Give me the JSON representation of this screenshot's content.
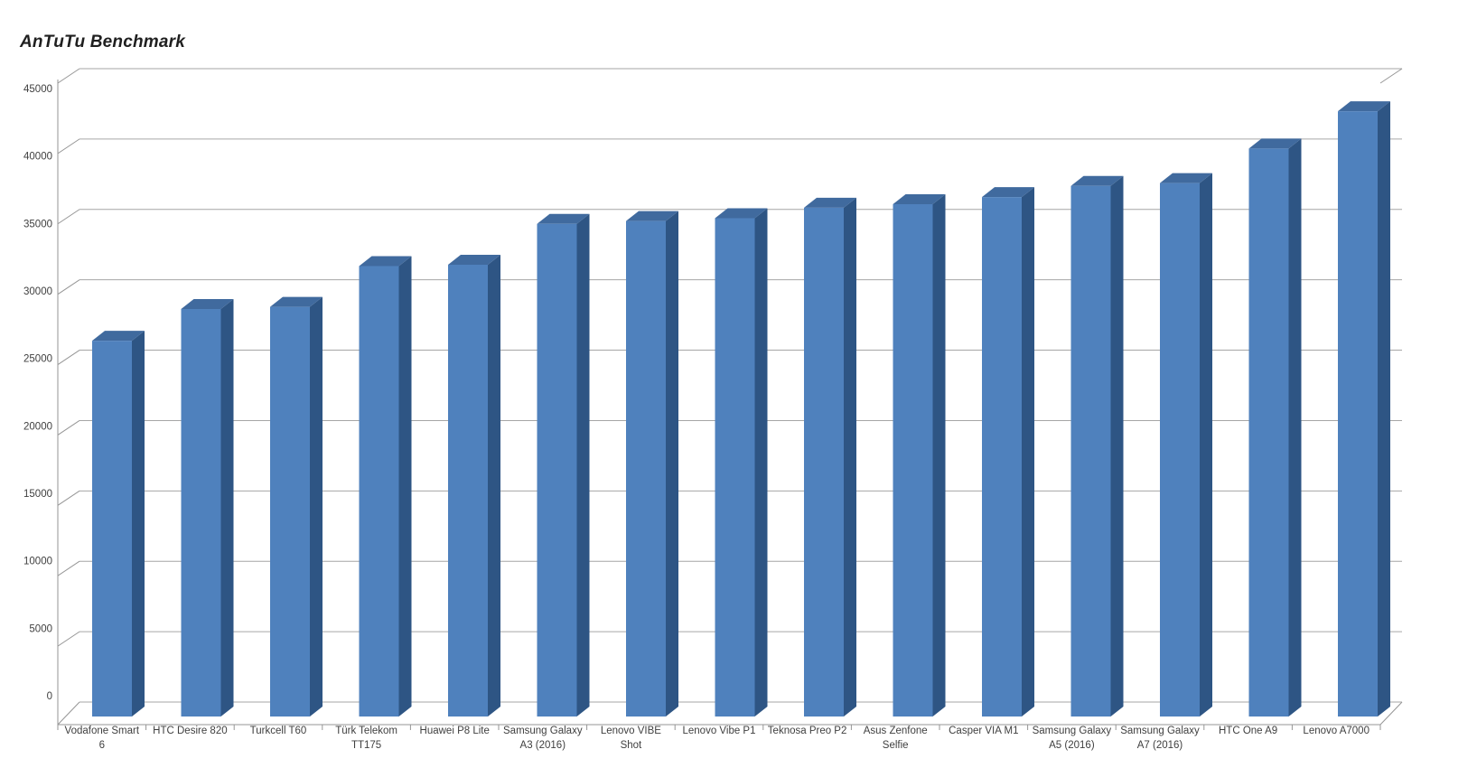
{
  "title": "AnTuTu Benchmark",
  "chart_data": {
    "type": "bar",
    "style": "3d-column",
    "title": "AnTuTu Benchmark",
    "categories": [
      "Vodafone Smart 6",
      "HTC Desire 820",
      "Turkcell T60",
      "Türk Telekom TT175",
      "Huawei P8 Lite",
      "Samsung Galaxy A3 (2016)",
      "Lenovo VIBE Shot",
      "Lenovo Vibe P1",
      "Teknosa Preo P2",
      "Asus Zenfone Selfie",
      "Casper VIA M1",
      "Samsung Galaxy A5 (2016)",
      "Samsung Galaxy A7 (2016)",
      "HTC One A9",
      "Lenovo A7000"
    ],
    "category_label_lines": [
      [
        "Vodafone Smart",
        "6"
      ],
      [
        "HTC Desire 820"
      ],
      [
        "Turkcell T60"
      ],
      [
        "Türk Telekom",
        "TT175"
      ],
      [
        "Huawei P8 Lite"
      ],
      [
        "Samsung Galaxy",
        "A3 (2016)"
      ],
      [
        "Lenovo VIBE",
        "Shot"
      ],
      [
        "Lenovo Vibe P1"
      ],
      [
        "Teknosa Preo P2"
      ],
      [
        "Asus Zenfone",
        "Selfie"
      ],
      [
        "Casper VIA M1"
      ],
      [
        "Samsung Galaxy",
        "A5 (2016)"
      ],
      [
        "Samsung Galaxy",
        "A7 (2016)"
      ],
      [
        "HTC One A9"
      ],
      [
        "Lenovo A7000"
      ]
    ],
    "values": [
      26700,
      28950,
      29100,
      32000,
      32100,
      35000,
      35200,
      35400,
      36150,
      36400,
      36900,
      37700,
      37900,
      40350,
      43000
    ],
    "ylim": [
      0,
      45000
    ],
    "y_tick_step": 5000,
    "y_tick_labels": [
      "0",
      "5000",
      "10000",
      "15000",
      "20000",
      "25000",
      "30000",
      "35000",
      "40000",
      "45000"
    ],
    "xlabel": "",
    "ylabel": "",
    "grid": true,
    "legend": "none"
  },
  "colors": {
    "bar_front": "#4f81bd",
    "bar_top": "#406a9e",
    "bar_side": "#2e5584",
    "gridline": "#a6a6a6",
    "axis": "#969696",
    "tick_text": "#3f3f3f",
    "title_text": "#1f1f1f",
    "background": "#ffffff"
  }
}
